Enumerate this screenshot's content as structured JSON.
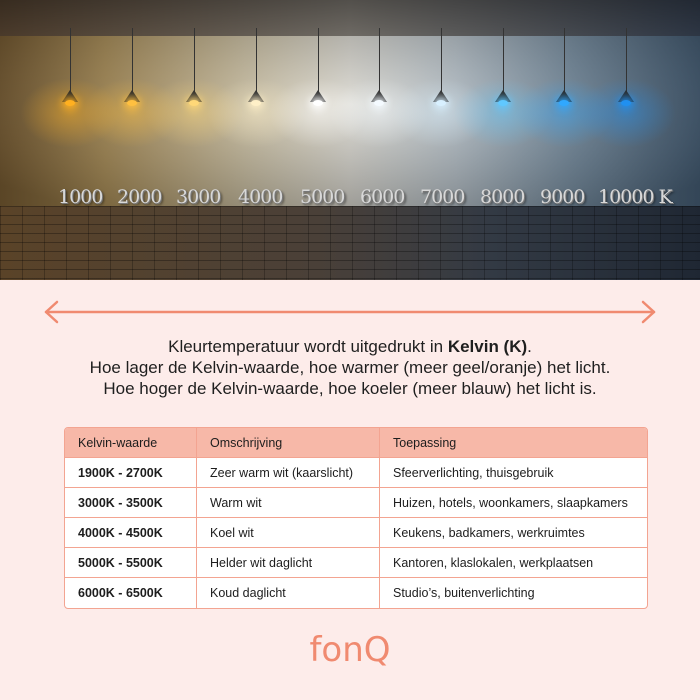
{
  "photo": {
    "kelvin_labels": [
      "1000",
      "2000",
      "3000",
      "4000",
      "5000",
      "6000",
      "7000",
      "8000",
      "9000",
      "10000 K"
    ],
    "lamp_colors": [
      "#ffb020",
      "#ffc040",
      "#ffd878",
      "#fff0c8",
      "#ffffff",
      "#f4faff",
      "#d8f0ff",
      "#60c8ff",
      "#30a8ff",
      "#2090f0"
    ]
  },
  "arrow_color": "#f08a70",
  "intro": {
    "line1_prefix": "Kleurtemperatuur wordt uitgedrukt in ",
    "line1_bold": "Kelvin (K)",
    "line1_suffix": ".",
    "line2": "Hoe lager de Kelvin-waarde, hoe warmer (meer geel/oranje) het licht.",
    "line3": "Hoe hoger de Kelvin-waarde, hoe koeler (meer blauw) het licht is."
  },
  "table": {
    "headers": [
      "Kelvin-waarde",
      "Omschrijving",
      "Toepassing"
    ],
    "rows": [
      [
        "1900K - 2700K",
        "Zeer warm wit (kaarslicht)",
        "Sfeerverlichting, thuisgebruik"
      ],
      [
        "3000K - 3500K",
        "Warm wit",
        "Huizen, hotels, woonkamers, slaapkamers"
      ],
      [
        "4000K - 4500K",
        "Koel wit",
        "Keukens, badkamers, werkruimtes"
      ],
      [
        "5000K - 5500K",
        "Helder wit daglicht",
        "Kantoren, klaslokalen, werkplaatsen"
      ],
      [
        "6000K - 6500K",
        "Koud daglicht",
        "Studio’s, buitenverlichting"
      ]
    ]
  },
  "logo": "fonQ"
}
